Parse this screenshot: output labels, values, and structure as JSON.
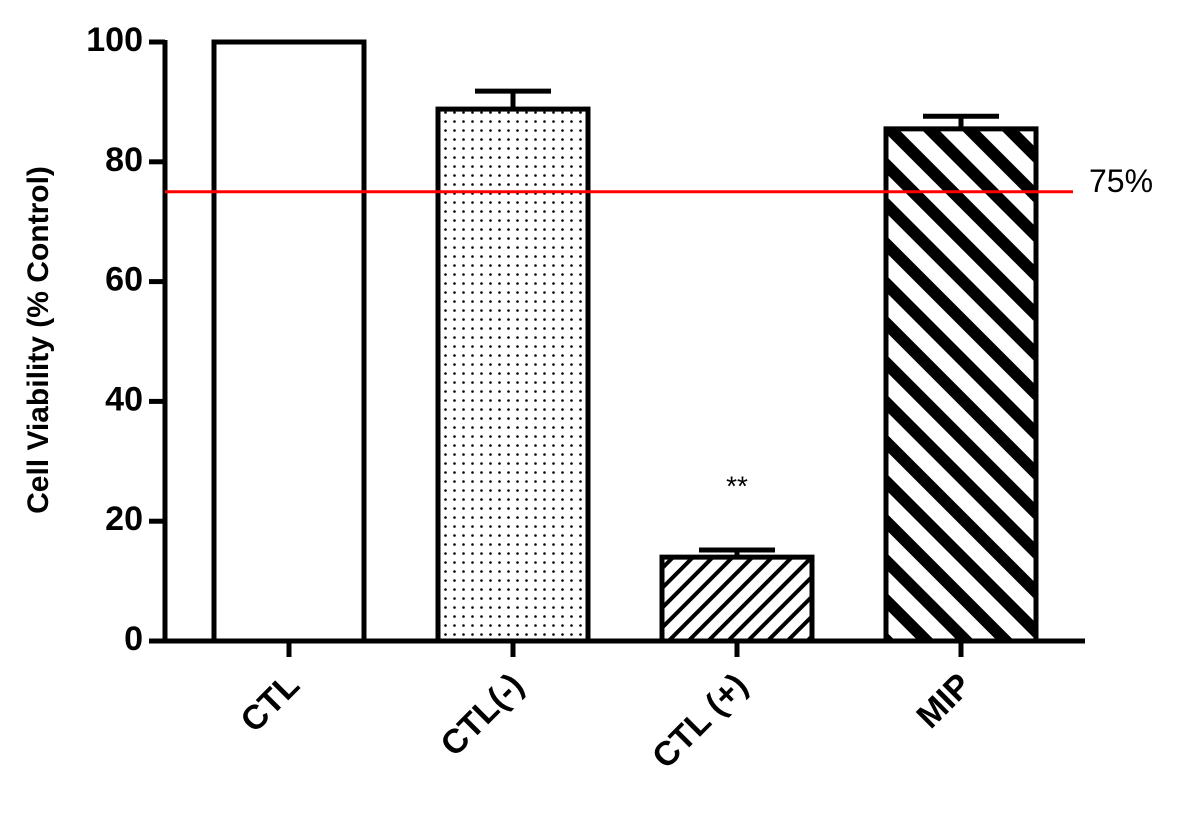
{
  "chart_data": {
    "type": "bar",
    "y_label": "Cell Viability (% Control)",
    "categories": [
      "CTL",
      "CTL(-)",
      "CTL (+)",
      "MIP"
    ],
    "values": [
      100,
      88.8,
      14.0,
      85.5
    ],
    "errors": [
      0,
      3.0,
      1.2,
      2.1
    ],
    "patterns": [
      "solid",
      "dots",
      "fine-hatch",
      "wide-hatch"
    ],
    "color": "#000000",
    "ylim": [
      0,
      100
    ],
    "yticks": [
      0,
      20,
      40,
      60,
      80,
      100
    ],
    "reference_line": {
      "value": 75,
      "label": "75%",
      "color": "#ff0000"
    },
    "annotations": [
      {
        "text": "**",
        "category": 2
      }
    ]
  }
}
